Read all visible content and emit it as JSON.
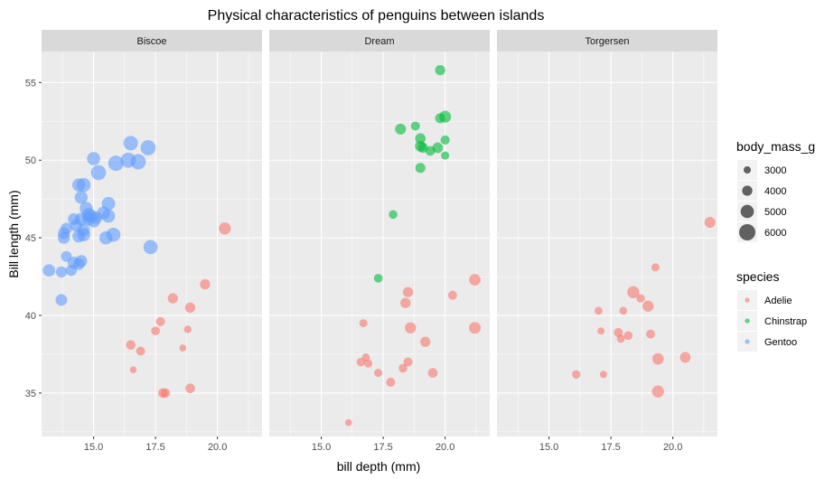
{
  "chart_data": {
    "type": "scatter",
    "title": "Physical characteristics of penguins between islands",
    "xlabel": "bill depth (mm)",
    "ylabel": "Bill length (mm)",
    "xlim": [
      12.9,
      21.8
    ],
    "ylim": [
      32.2,
      57.0
    ],
    "x_ticks": [
      15.0,
      17.5,
      20.0
    ],
    "x_tick_labels": [
      "15.0",
      "17.5",
      "20.0"
    ],
    "y_ticks": [
      35,
      40,
      45,
      50,
      55
    ],
    "y_tick_labels": [
      "35",
      "40",
      "45",
      "50",
      "55"
    ],
    "grid": true,
    "facets": [
      "Biscoe",
      "Dream",
      "Torgersen"
    ],
    "size_legend": {
      "title": "body_mass_g",
      "breaks": [
        3000,
        4000,
        5000,
        6000
      ],
      "labels": [
        "3000",
        "4000",
        "5000",
        "6000"
      ]
    },
    "color_legend": {
      "title": "species",
      "entries": [
        {
          "name": "Adelie",
          "color": "#F8766D"
        },
        {
          "name": "Chinstrap",
          "color": "#00BA38"
        },
        {
          "name": "Gentoo",
          "color": "#619CFF"
        }
      ]
    },
    "legend_position": "right",
    "points": [
      {
        "island": "Biscoe",
        "species": "Gentoo",
        "x": 13.2,
        "y": 42.9,
        "mass": 4700
      },
      {
        "island": "Biscoe",
        "species": "Gentoo",
        "x": 13.7,
        "y": 41.0,
        "mass": 4500
      },
      {
        "island": "Biscoe",
        "species": "Gentoo",
        "x": 13.7,
        "y": 42.8,
        "mass": 4300
      },
      {
        "island": "Biscoe",
        "species": "Gentoo",
        "x": 13.8,
        "y": 45.0,
        "mass": 4600
      },
      {
        "island": "Biscoe",
        "species": "Gentoo",
        "x": 13.8,
        "y": 45.3,
        "mass": 4500
      },
      {
        "island": "Biscoe",
        "species": "Gentoo",
        "x": 13.9,
        "y": 45.6,
        "mass": 4400
      },
      {
        "island": "Biscoe",
        "species": "Gentoo",
        "x": 13.9,
        "y": 43.8,
        "mass": 4200
      },
      {
        "island": "Biscoe",
        "species": "Gentoo",
        "x": 14.1,
        "y": 42.9,
        "mass": 4300
      },
      {
        "island": "Biscoe",
        "species": "Gentoo",
        "x": 14.2,
        "y": 46.2,
        "mass": 4500
      },
      {
        "island": "Biscoe",
        "species": "Gentoo",
        "x": 14.2,
        "y": 43.4,
        "mass": 4600
      },
      {
        "island": "Biscoe",
        "species": "Gentoo",
        "x": 14.3,
        "y": 45.8,
        "mass": 4700
      },
      {
        "island": "Biscoe",
        "species": "Gentoo",
        "x": 14.4,
        "y": 43.3,
        "mass": 4500
      },
      {
        "island": "Biscoe",
        "species": "Gentoo",
        "x": 14.4,
        "y": 45.1,
        "mass": 4800
      },
      {
        "island": "Biscoe",
        "species": "Gentoo",
        "x": 14.4,
        "y": 48.4,
        "mass": 4900
      },
      {
        "island": "Biscoe",
        "species": "Gentoo",
        "x": 14.5,
        "y": 46.2,
        "mass": 4800
      },
      {
        "island": "Biscoe",
        "species": "Gentoo",
        "x": 14.5,
        "y": 47.6,
        "mass": 4900
      },
      {
        "island": "Biscoe",
        "species": "Gentoo",
        "x": 14.5,
        "y": 43.5,
        "mass": 4600
      },
      {
        "island": "Biscoe",
        "species": "Gentoo",
        "x": 14.6,
        "y": 45.5,
        "mass": 4700
      },
      {
        "island": "Biscoe",
        "species": "Gentoo",
        "x": 14.6,
        "y": 45.2,
        "mass": 5000
      },
      {
        "island": "Biscoe",
        "species": "Gentoo",
        "x": 14.6,
        "y": 48.4,
        "mass": 5200
      },
      {
        "island": "Biscoe",
        "species": "Gentoo",
        "x": 14.7,
        "y": 46.9,
        "mass": 4900
      },
      {
        "island": "Biscoe",
        "species": "Gentoo",
        "x": 14.8,
        "y": 46.5,
        "mass": 5000
      },
      {
        "island": "Biscoe",
        "species": "Gentoo",
        "x": 14.8,
        "y": 46.2,
        "mass": 4700
      },
      {
        "island": "Biscoe",
        "species": "Gentoo",
        "x": 14.9,
        "y": 46.4,
        "mass": 4800
      },
      {
        "island": "Biscoe",
        "species": "Gentoo",
        "x": 15.0,
        "y": 50.1,
        "mass": 5000
      },
      {
        "island": "Biscoe",
        "species": "Gentoo",
        "x": 15.0,
        "y": 46.1,
        "mass": 5100
      },
      {
        "island": "Biscoe",
        "species": "Gentoo",
        "x": 15.1,
        "y": 46.3,
        "mass": 4700
      },
      {
        "island": "Biscoe",
        "species": "Gentoo",
        "x": 15.2,
        "y": 49.2,
        "mass": 5600
      },
      {
        "island": "Biscoe",
        "species": "Gentoo",
        "x": 15.4,
        "y": 46.6,
        "mass": 4900
      },
      {
        "island": "Biscoe",
        "species": "Gentoo",
        "x": 15.5,
        "y": 45.0,
        "mass": 5000
      },
      {
        "island": "Biscoe",
        "species": "Gentoo",
        "x": 15.6,
        "y": 47.2,
        "mass": 5100
      },
      {
        "island": "Biscoe",
        "species": "Gentoo",
        "x": 15.6,
        "y": 46.4,
        "mass": 5000
      },
      {
        "island": "Biscoe",
        "species": "Gentoo",
        "x": 15.8,
        "y": 45.2,
        "mass": 5300
      },
      {
        "island": "Biscoe",
        "species": "Gentoo",
        "x": 15.9,
        "y": 49.8,
        "mass": 5700
      },
      {
        "island": "Biscoe",
        "species": "Gentoo",
        "x": 16.4,
        "y": 50.0,
        "mass": 5600
      },
      {
        "island": "Biscoe",
        "species": "Gentoo",
        "x": 16.5,
        "y": 51.1,
        "mass": 5400
      },
      {
        "island": "Biscoe",
        "species": "Gentoo",
        "x": 16.8,
        "y": 49.9,
        "mass": 5700
      },
      {
        "island": "Biscoe",
        "species": "Gentoo",
        "x": 17.2,
        "y": 50.8,
        "mass": 5600
      },
      {
        "island": "Biscoe",
        "species": "Gentoo",
        "x": 17.3,
        "y": 44.4,
        "mass": 5300
      },
      {
        "island": "Biscoe",
        "species": "Adelie",
        "x": 16.6,
        "y": 36.5,
        "mass": 2850
      },
      {
        "island": "Biscoe",
        "species": "Adelie",
        "x": 16.5,
        "y": 38.1,
        "mass": 3750
      },
      {
        "island": "Biscoe",
        "species": "Adelie",
        "x": 16.9,
        "y": 37.7,
        "mass": 3600
      },
      {
        "island": "Biscoe",
        "species": "Adelie",
        "x": 17.5,
        "y": 39.0,
        "mass": 3500
      },
      {
        "island": "Biscoe",
        "species": "Adelie",
        "x": 17.7,
        "y": 39.6,
        "mass": 3600
      },
      {
        "island": "Biscoe",
        "species": "Adelie",
        "x": 17.8,
        "y": 35.0,
        "mass": 3800
      },
      {
        "island": "Biscoe",
        "species": "Adelie",
        "x": 17.9,
        "y": 35.0,
        "mass": 3700
      },
      {
        "island": "Biscoe",
        "species": "Adelie",
        "x": 18.2,
        "y": 41.1,
        "mass": 4000
      },
      {
        "island": "Biscoe",
        "species": "Adelie",
        "x": 18.6,
        "y": 37.9,
        "mass": 2900
      },
      {
        "island": "Biscoe",
        "species": "Adelie",
        "x": 18.8,
        "y": 39.1,
        "mass": 3100
      },
      {
        "island": "Biscoe",
        "species": "Adelie",
        "x": 18.9,
        "y": 40.5,
        "mass": 4000
      },
      {
        "island": "Biscoe",
        "species": "Adelie",
        "x": 18.9,
        "y": 35.3,
        "mass": 3800
      },
      {
        "island": "Biscoe",
        "species": "Adelie",
        "x": 19.5,
        "y": 42.0,
        "mass": 4000
      },
      {
        "island": "Biscoe",
        "species": "Adelie",
        "x": 20.3,
        "y": 45.6,
        "mass": 4600
      },
      {
        "island": "Dream",
        "species": "Chinstrap",
        "x": 17.3,
        "y": 42.4,
        "mass": 3500
      },
      {
        "island": "Dream",
        "species": "Chinstrap",
        "x": 17.9,
        "y": 46.5,
        "mass": 3500
      },
      {
        "island": "Dream",
        "species": "Chinstrap",
        "x": 18.2,
        "y": 52.0,
        "mass": 4200
      },
      {
        "island": "Dream",
        "species": "Chinstrap",
        "x": 18.8,
        "y": 52.2,
        "mass": 3600
      },
      {
        "island": "Dream",
        "species": "Chinstrap",
        "x": 19.0,
        "y": 51.4,
        "mass": 4100
      },
      {
        "island": "Dream",
        "species": "Chinstrap",
        "x": 19.0,
        "y": 50.9,
        "mass": 4200
      },
      {
        "island": "Dream",
        "species": "Chinstrap",
        "x": 19.1,
        "y": 50.8,
        "mass": 4000
      },
      {
        "island": "Dream",
        "species": "Chinstrap",
        "x": 19.0,
        "y": 49.5,
        "mass": 3950
      },
      {
        "island": "Dream",
        "species": "Chinstrap",
        "x": 19.4,
        "y": 50.6,
        "mass": 3800
      },
      {
        "island": "Dream",
        "species": "Chinstrap",
        "x": 19.7,
        "y": 50.8,
        "mass": 4100
      },
      {
        "island": "Dream",
        "species": "Chinstrap",
        "x": 19.8,
        "y": 52.7,
        "mass": 3950
      },
      {
        "island": "Dream",
        "species": "Chinstrap",
        "x": 19.8,
        "y": 55.8,
        "mass": 4000
      },
      {
        "island": "Dream",
        "species": "Chinstrap",
        "x": 20.0,
        "y": 52.8,
        "mass": 4550
      },
      {
        "island": "Dream",
        "species": "Chinstrap",
        "x": 20.0,
        "y": 51.3,
        "mass": 3650
      },
      {
        "island": "Dream",
        "species": "Chinstrap",
        "x": 20.0,
        "y": 50.3,
        "mass": 3300
      },
      {
        "island": "Dream",
        "species": "Adelie",
        "x": 16.1,
        "y": 33.1,
        "mass": 2900
      },
      {
        "island": "Dream",
        "species": "Adelie",
        "x": 16.6,
        "y": 37.0,
        "mass": 3400
      },
      {
        "island": "Dream",
        "species": "Adelie",
        "x": 16.7,
        "y": 39.5,
        "mass": 3300
      },
      {
        "island": "Dream",
        "species": "Adelie",
        "x": 16.8,
        "y": 37.3,
        "mass": 3200
      },
      {
        "island": "Dream",
        "species": "Adelie",
        "x": 16.9,
        "y": 36.9,
        "mass": 3300
      },
      {
        "island": "Dream",
        "species": "Adelie",
        "x": 17.3,
        "y": 36.3,
        "mass": 3300
      },
      {
        "island": "Dream",
        "species": "Adelie",
        "x": 17.8,
        "y": 35.7,
        "mass": 3600
      },
      {
        "island": "Dream",
        "species": "Adelie",
        "x": 18.3,
        "y": 36.6,
        "mass": 3500
      },
      {
        "island": "Dream",
        "species": "Adelie",
        "x": 18.4,
        "y": 40.8,
        "mass": 4000
      },
      {
        "island": "Dream",
        "species": "Adelie",
        "x": 18.5,
        "y": 41.5,
        "mass": 4000
      },
      {
        "island": "Dream",
        "species": "Adelie",
        "x": 18.5,
        "y": 37.0,
        "mass": 3600
      },
      {
        "island": "Dream",
        "species": "Adelie",
        "x": 18.6,
        "y": 39.2,
        "mass": 4300
      },
      {
        "island": "Dream",
        "species": "Adelie",
        "x": 19.2,
        "y": 38.3,
        "mass": 4000
      },
      {
        "island": "Dream",
        "species": "Adelie",
        "x": 19.5,
        "y": 36.3,
        "mass": 3800
      },
      {
        "island": "Dream",
        "species": "Adelie",
        "x": 20.3,
        "y": 41.3,
        "mass": 3600
      },
      {
        "island": "Dream",
        "species": "Adelie",
        "x": 21.2,
        "y": 42.3,
        "mass": 4400
      },
      {
        "island": "Dream",
        "species": "Adelie",
        "x": 21.2,
        "y": 39.2,
        "mass": 4500
      },
      {
        "island": "Torgersen",
        "species": "Adelie",
        "x": 16.1,
        "y": 36.2,
        "mass": 3400
      },
      {
        "island": "Torgersen",
        "species": "Adelie",
        "x": 17.0,
        "y": 40.3,
        "mass": 3250
      },
      {
        "island": "Torgersen",
        "species": "Adelie",
        "x": 17.1,
        "y": 39.0,
        "mass": 3000
      },
      {
        "island": "Torgersen",
        "species": "Adelie",
        "x": 17.2,
        "y": 36.2,
        "mass": 3000
      },
      {
        "island": "Torgersen",
        "species": "Adelie",
        "x": 17.8,
        "y": 38.9,
        "mass": 3600
      },
      {
        "island": "Torgersen",
        "species": "Adelie",
        "x": 17.9,
        "y": 38.5,
        "mass": 3300
      },
      {
        "island": "Torgersen",
        "species": "Adelie",
        "x": 18.0,
        "y": 40.3,
        "mass": 3200
      },
      {
        "island": "Torgersen",
        "species": "Adelie",
        "x": 18.2,
        "y": 38.7,
        "mass": 3500
      },
      {
        "island": "Torgersen",
        "species": "Adelie",
        "x": 18.4,
        "y": 41.5,
        "mass": 4600
      },
      {
        "island": "Torgersen",
        "species": "Adelie",
        "x": 18.7,
        "y": 41.1,
        "mass": 3400
      },
      {
        "island": "Torgersen",
        "species": "Adelie",
        "x": 19.0,
        "y": 40.6,
        "mass": 4300
      },
      {
        "island": "Torgersen",
        "species": "Adelie",
        "x": 19.1,
        "y": 38.8,
        "mass": 3600
      },
      {
        "island": "Torgersen",
        "species": "Adelie",
        "x": 19.3,
        "y": 43.1,
        "mass": 3300
      },
      {
        "island": "Torgersen",
        "species": "Adelie",
        "x": 19.4,
        "y": 37.2,
        "mass": 4400
      },
      {
        "island": "Torgersen",
        "species": "Adelie",
        "x": 19.4,
        "y": 35.1,
        "mass": 4600
      },
      {
        "island": "Torgersen",
        "species": "Adelie",
        "x": 20.5,
        "y": 37.3,
        "mass": 4150
      },
      {
        "island": "Torgersen",
        "species": "Adelie",
        "x": 21.5,
        "y": 46.0,
        "mass": 4200
      }
    ]
  }
}
